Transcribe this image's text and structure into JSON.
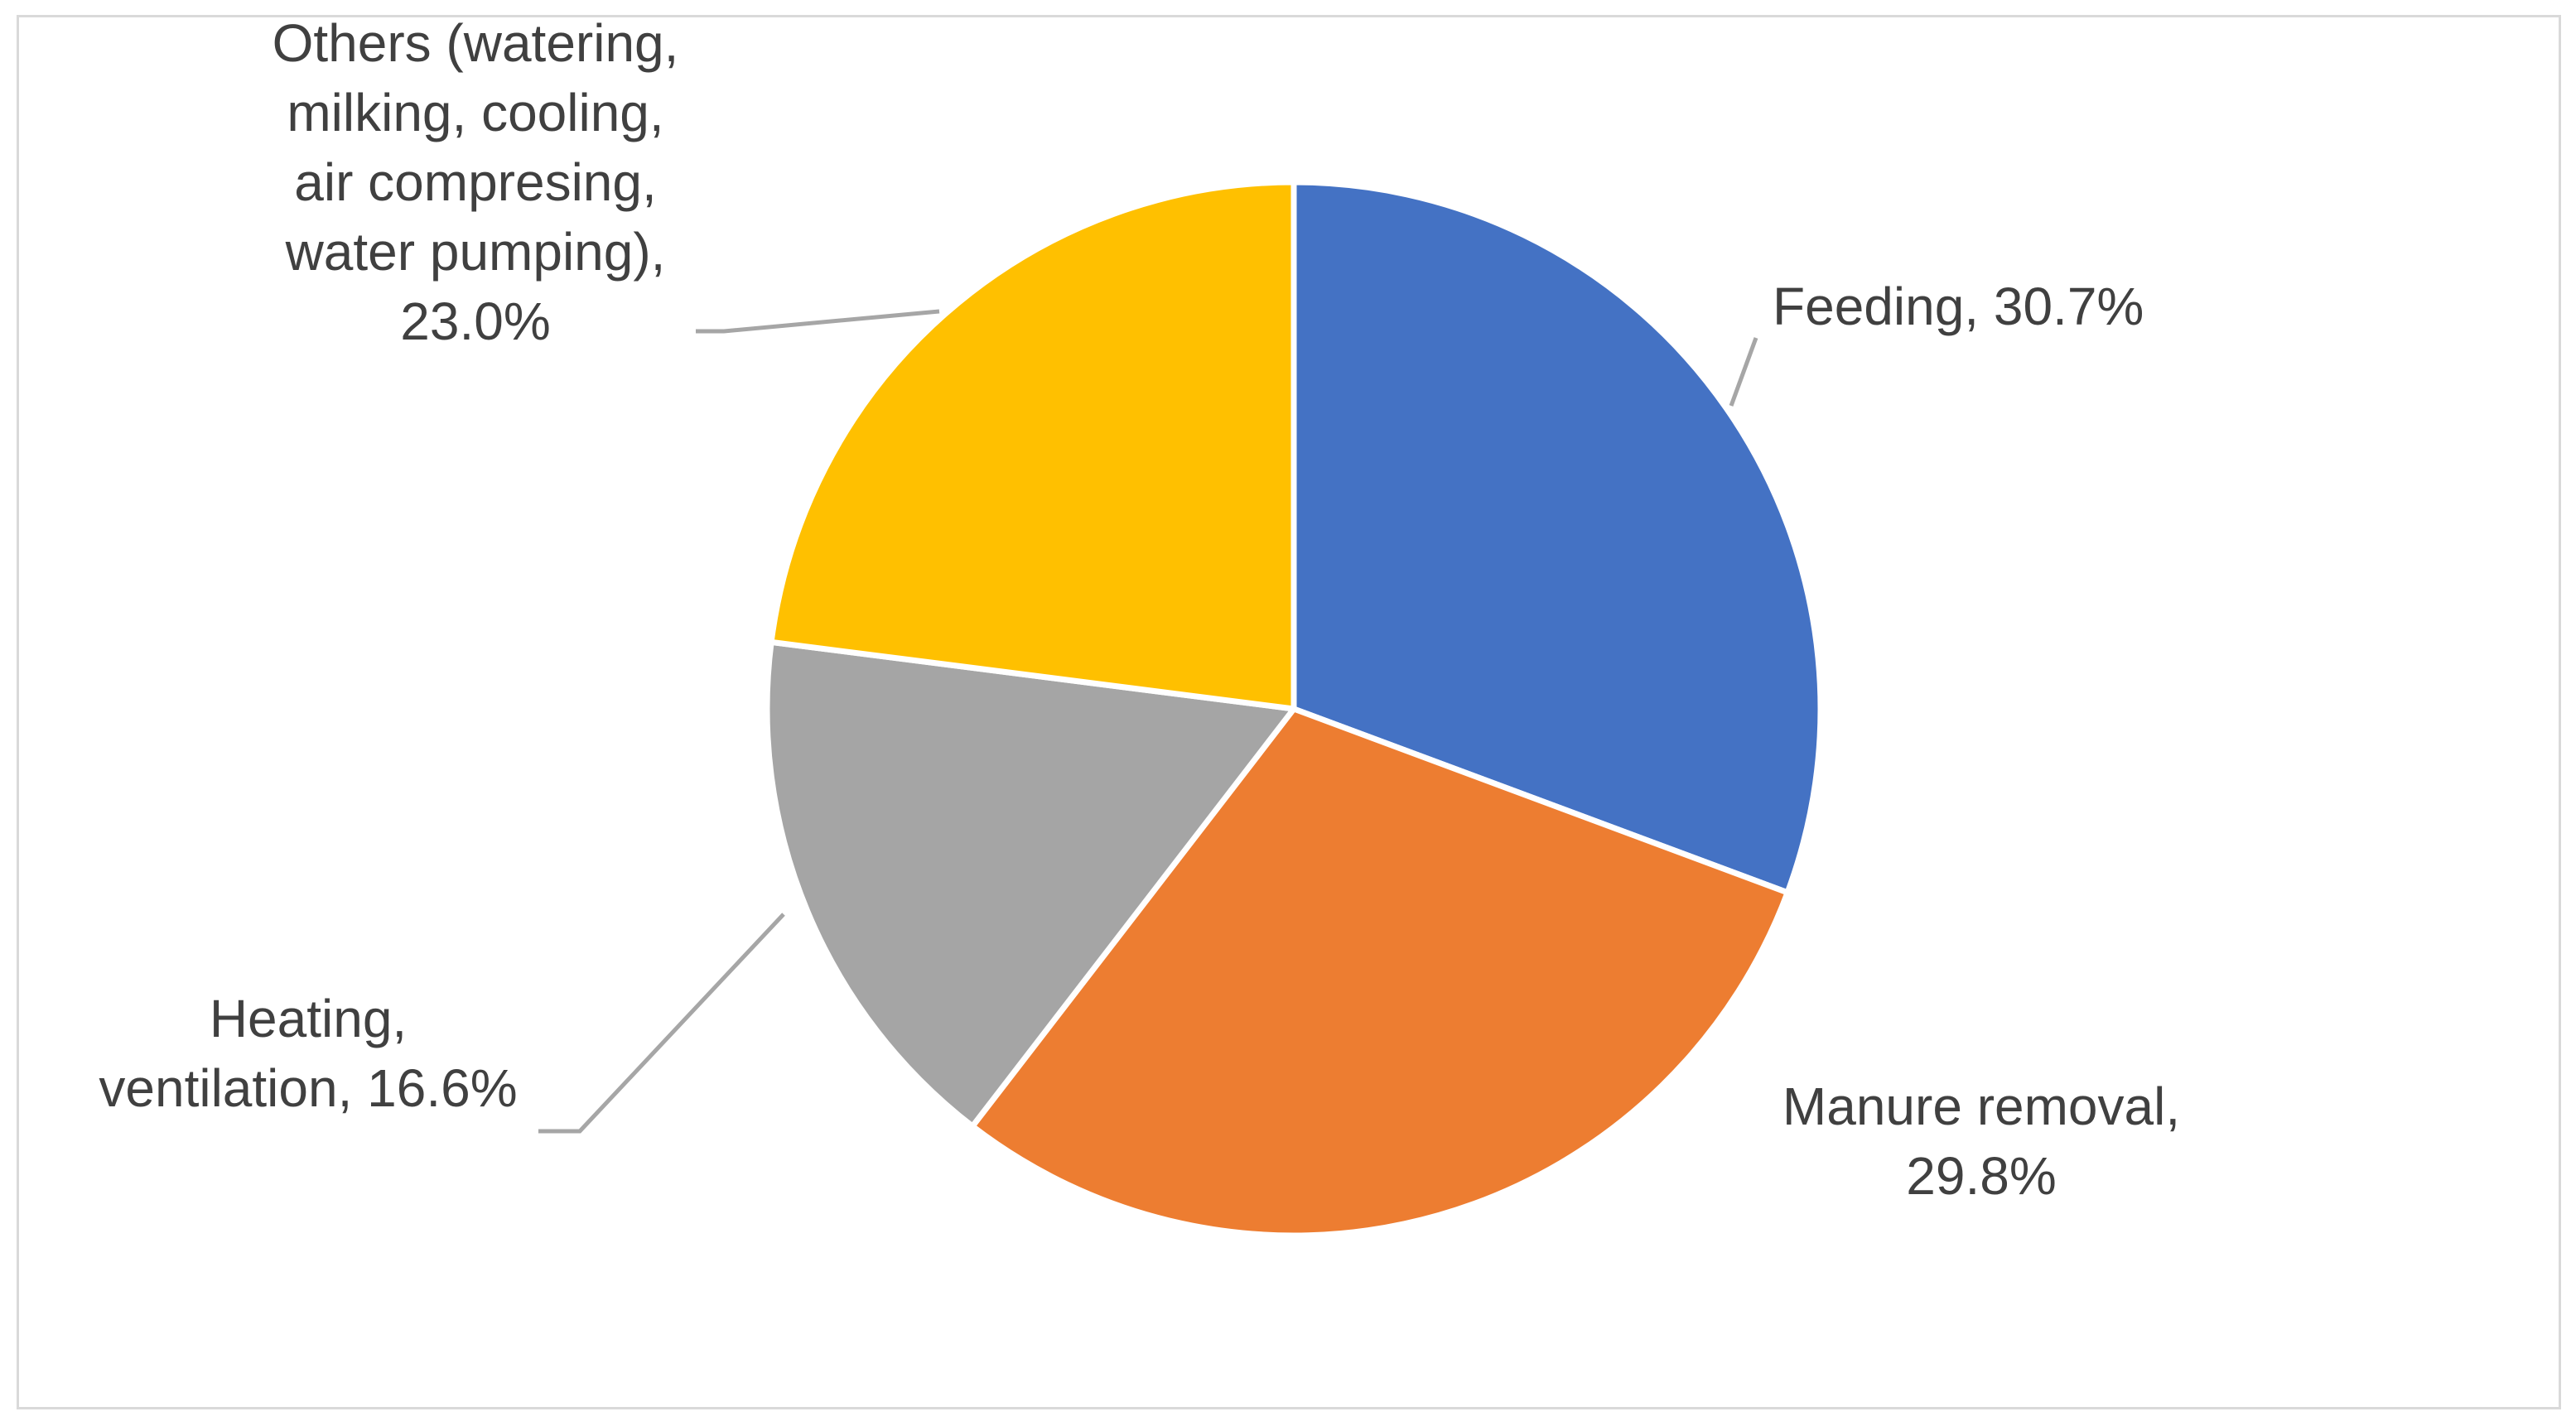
{
  "chart_data": {
    "type": "pie",
    "start_angle_deg": 0,
    "direction": "clockwise",
    "slices": [
      {
        "label_lines": [
          "Feeding, 30.7%"
        ],
        "value": 30.7,
        "color": "#4472C4"
      },
      {
        "label_lines": [
          "Manure removal,",
          "29.8%"
        ],
        "value": 29.8,
        "color": "#ED7D31"
      },
      {
        "label_lines": [
          "Heating,",
          "ventilation, 16.6%"
        ],
        "value": 16.6,
        "color": "#A5A5A5"
      },
      {
        "label_lines": [
          "Others (watering,",
          "milking, cooling,",
          "air compresing,",
          "water pumping),",
          "23.0%"
        ],
        "value": 23.0,
        "color": "#FFC000"
      }
    ],
    "legend": "none",
    "leader_line_color": "#A6A6A6",
    "slice_separator_color": "#FFFFFF"
  }
}
